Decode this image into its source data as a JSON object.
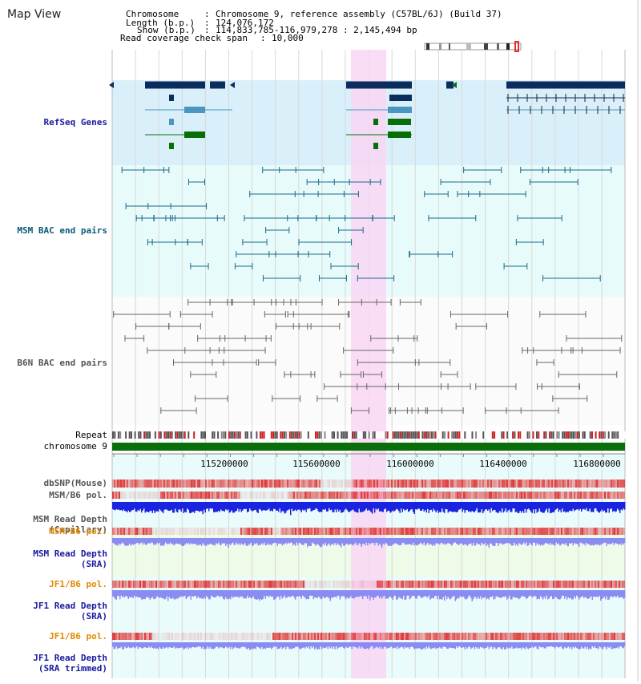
{
  "app": {
    "title": "Map View"
  },
  "header": {
    "chromosome_key": "Chromosome",
    "chromosome_value": "Chromosome 9, reference assembly (C57BL/6J) (Build 37)",
    "length_key": "Length (b.p.)",
    "length_value": "124,076,172",
    "show_key": "Show (b.p.)",
    "show_value": "114,833,785-116,979,278 : 2,145,494 bp",
    "coverage_key": "Read coverage check span",
    "coverage_value": "10,000"
  },
  "tracks": {
    "refseq": "RefSeq Genes",
    "msm_bac": "MSM BAC end pairs",
    "b6n_bac": "B6N BAC end pairs",
    "repeat": "Repeat",
    "chromosome": "chromosome 9",
    "dbsnp": "dbSNP(Mouse)",
    "msm_b6_pol": "MSM/B6 pol.",
    "msm_depth_cap_1": "MSM Read Depth",
    "msm_depth_cap_2": "(Capillary)",
    "msm_b6_pol_sra": "MSM/B6 pol.",
    "msm_depth_sra_1": "MSM Read Depth",
    "msm_depth_sra_2": "(SRA)",
    "jf1_b6_pol": "JF1/B6 pol.",
    "jf1_depth_1": "JF1 Read Depth",
    "jf1_depth_2": "(SRA)",
    "jf1_b6_pol_trim": "JF1/B6 pol.",
    "jf1_depth_trim_1": "JF1 Read Depth",
    "jf1_depth_trim_2": "(SRA trimmed)"
  },
  "axis": {
    "ticks": [
      "115200000",
      "115600000",
      "116000000",
      "116400000",
      "116800000"
    ]
  },
  "colors": {
    "refseq_dark": "#0a2d5e",
    "refseq_mid": "#4a96c0",
    "refseq_green": "#086e08",
    "msm_bac": "#1a6a8a",
    "b6n_bac": "#666666",
    "highlight": "#f9d6f3",
    "chromosome_bar": "#0a6e0a",
    "depth_capillary": "#1a24e0",
    "depth_sra": "#8a8cf2",
    "snp_red": "#e03a3a",
    "label_blue": "#1a1aa0",
    "label_teal": "#0a5a7a",
    "label_orange": "#e08a00"
  }
}
